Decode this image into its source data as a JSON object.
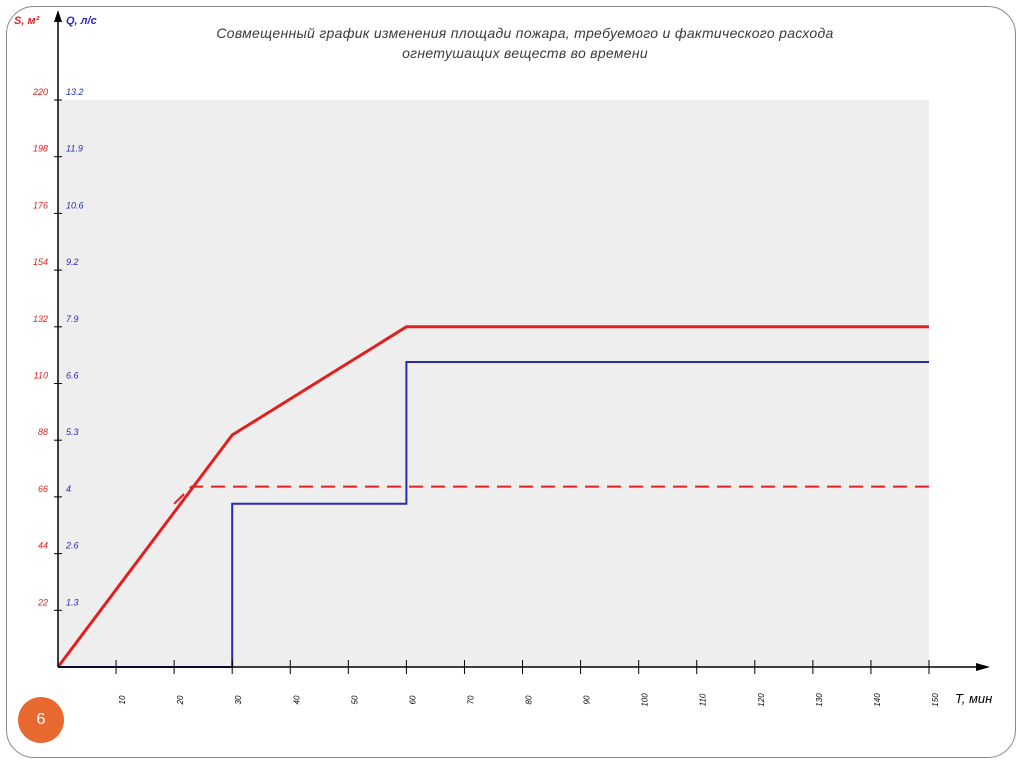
{
  "slide": {
    "number": "6"
  },
  "chart_data": {
    "type": "line",
    "title_lines": [
      "Совмещенный график изменения площади пожара, требуемого и фактического расхода",
      "огнетушащих веществ во времени"
    ],
    "y_left": {
      "label": "S, м²",
      "tick_labels": [
        "22",
        "44",
        "66",
        "88",
        "110",
        "132",
        "154",
        "176",
        "198",
        "220"
      ],
      "color": "#e02020"
    },
    "y_right": {
      "label": "Q, л/с",
      "tick_labels": [
        "1.3",
        "2.6",
        "4",
        "5.3",
        "6.6",
        "7.9",
        "9.2",
        "10.6",
        "11.9",
        "13.2"
      ],
      "color": "#2a2ab0"
    },
    "x_axis": {
      "label": "T, мин",
      "tick_labels": [
        "10",
        "20",
        "30",
        "40",
        "50",
        "60",
        "70",
        "80",
        "90",
        "100",
        "110",
        "120",
        "130",
        "140",
        "150"
      ],
      "xlim": [
        0,
        150
      ]
    },
    "ylim": [
      0,
      220
    ],
    "grid": false,
    "plot_background": "#eeeeee",
    "series": [
      {
        "style": "solid",
        "color": "#e02020",
        "axis": "S",
        "x": [
          0,
          30,
          60,
          150
        ],
        "y": [
          0,
          90,
          132,
          132
        ]
      },
      {
        "style": "dashed",
        "color": "#e02020",
        "axis": "Q",
        "x": [
          20,
          23,
          150
        ],
        "y": [
          3.8,
          4.2,
          4.2
        ]
      },
      {
        "style": "solid",
        "color": "#2a2ab0",
        "axis": "Q",
        "x": [
          0,
          30,
          30,
          60,
          60,
          150
        ],
        "y": [
          0,
          0,
          3.8,
          3.8,
          7.1,
          7.1
        ]
      }
    ]
  }
}
